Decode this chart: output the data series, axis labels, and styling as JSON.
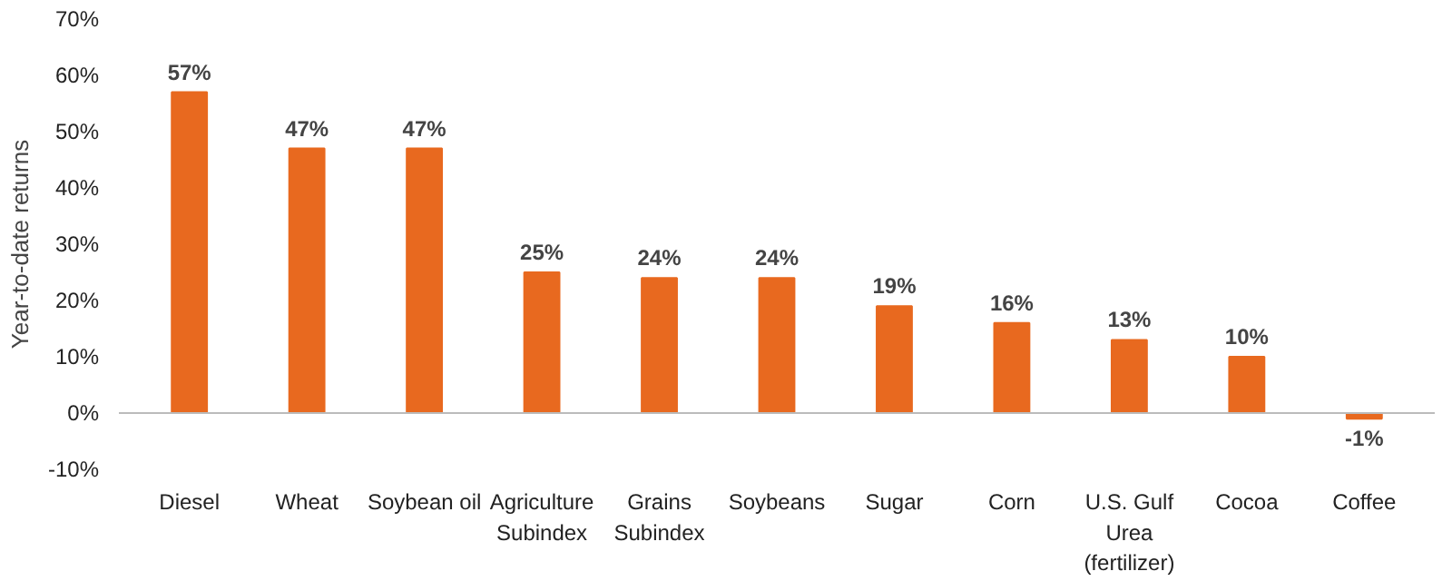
{
  "chart_data": {
    "type": "bar",
    "ylabel": "Year-to-date returns",
    "categories": [
      "Diesel",
      "Wheat",
      "Soybean oil",
      "Agriculture Subindex",
      "Grains Subindex",
      "Soybeans",
      "Sugar",
      "Corn",
      "U.S. Gulf Urea (fertilizer)",
      "Cocoa",
      "Coffee"
    ],
    "values": [
      57,
      47,
      47,
      25,
      24,
      24,
      19,
      16,
      13,
      10,
      -1
    ],
    "color": "#e8691f",
    "ylim": [
      -10,
      70
    ],
    "yticks": [
      {
        "value": -10,
        "label": "-10%"
      },
      {
        "value": 0,
        "label": "0%"
      },
      {
        "value": 10,
        "label": "10%"
      },
      {
        "value": 20,
        "label": "20%"
      },
      {
        "value": 30,
        "label": "30%"
      },
      {
        "value": 40,
        "label": "40%"
      },
      {
        "value": 50,
        "label": "50%"
      },
      {
        "value": 60,
        "label": "60%"
      },
      {
        "value": 70,
        "label": "70%"
      }
    ],
    "value_labels": [
      "57%",
      "47%",
      "47%",
      "25%",
      "24%",
      "24%",
      "19%",
      "16%",
      "13%",
      "10%",
      "-1%"
    ]
  }
}
